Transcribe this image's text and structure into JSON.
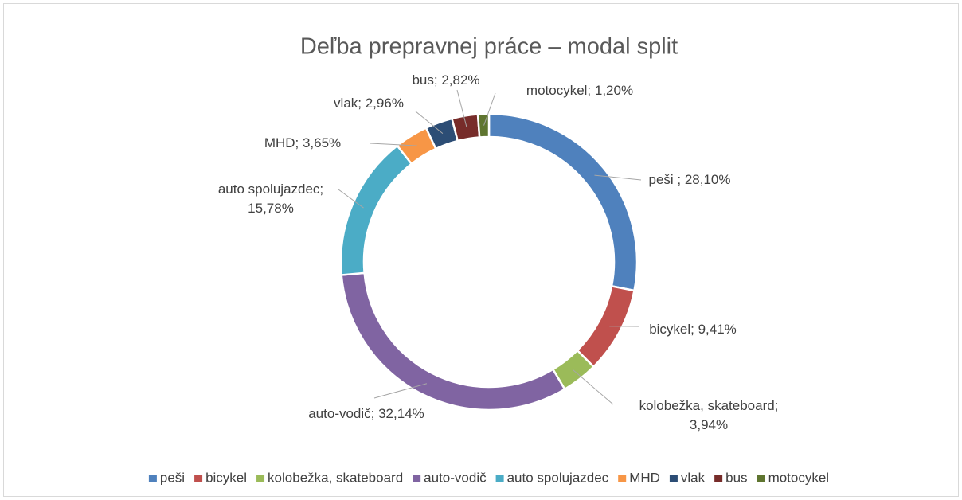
{
  "chart_data": {
    "type": "donut",
    "title": "Deľba prepravnej práce – modal split",
    "categories": [
      "peši",
      "bicykel",
      "kolobežka, skateboard",
      "auto-vodič",
      "auto spolujazdec",
      "MHD",
      "vlak",
      "bus",
      "motocykel"
    ],
    "values": [
      28.1,
      9.41,
      3.94,
      32.14,
      15.78,
      3.65,
      2.96,
      2.82,
      1.2
    ],
    "value_labels": [
      "peši ; 28,10%",
      "bicykel; 9,41%",
      "kolobežka, skateboard;\n3,94%",
      "auto-vodič; 32,14%",
      "auto spolujazdec;\n15,78%",
      "MHD; 3,65%",
      "vlak; 2,96%",
      "bus; 2,82%",
      "motocykel; 1,20%"
    ],
    "colors": [
      "#4f81bd",
      "#c0504d",
      "#9bbb59",
      "#8064a2",
      "#4bacc6",
      "#f79646",
      "#2c4d75",
      "#772c2a",
      "#5f7530"
    ],
    "legend": "bottom"
  }
}
